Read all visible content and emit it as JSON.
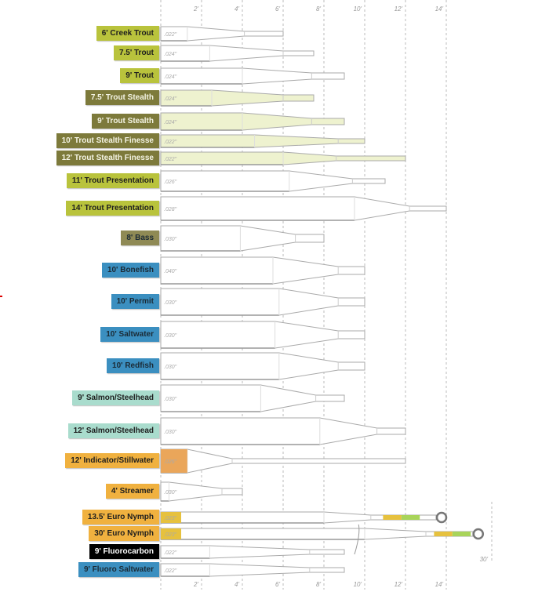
{
  "axis": {
    "unit": "ft",
    "ticks": [
      "2'",
      "4'",
      "6'",
      "8'",
      "10'",
      "12'",
      "14'"
    ],
    "top_last_tick": "14'",
    "extra_tick": "30'"
  },
  "colors": {
    "trout": "#b9c33c",
    "stealth": "#7d7a3b",
    "bass": "#8f8a55",
    "salt": "#3b8fc0",
    "salmon": "#a9dccd",
    "specialty": "#f0b13f",
    "fluoro": "#000000",
    "stealth_fill": "#eef2cf",
    "indicator_fill": "#eaa65a",
    "euro_yellow": "#e6c13e",
    "euro_green": "#a8d45a"
  },
  "leaders": [
    {
      "label": "6' Creek Trout",
      "length_ft": 6,
      "diameter": ".022\"",
      "color": "#b9c33c"
    },
    {
      "label": "7.5' Trout",
      "length_ft": 7.5,
      "diameter": ".024\"",
      "color": "#b9c33c"
    },
    {
      "label": "9' Trout",
      "length_ft": 9,
      "diameter": ".024\"",
      "color": "#b9c33c"
    },
    {
      "label": "7.5' Trout Stealth",
      "length_ft": 7.5,
      "diameter": ".024\"",
      "color": "#7d7a3b"
    },
    {
      "label": "9' Trout Stealth",
      "length_ft": 9,
      "diameter": ".024\"",
      "color": "#7d7a3b"
    },
    {
      "label": "10' Trout Stealth Finesse",
      "length_ft": 10,
      "diameter": ".022\"",
      "color": "#7d7a3b"
    },
    {
      "label": "12' Trout Stealth Finesse",
      "length_ft": 12,
      "diameter": ".022\"",
      "color": "#7d7a3b"
    },
    {
      "label": "11' Trout Presentation",
      "length_ft": 11,
      "diameter": ".026\"",
      "color": "#b9c33c"
    },
    {
      "label": "14' Trout Presentation",
      "length_ft": 14,
      "diameter": ".028\"",
      "color": "#b9c33c"
    },
    {
      "label": "8' Bass",
      "length_ft": 8,
      "diameter": ".030\"",
      "color": "#8f8a55"
    },
    {
      "label": "10' Bonefish",
      "length_ft": 10,
      "diameter": ".040\"",
      "color": "#3b8fc0"
    },
    {
      "label": "10' Permit",
      "length_ft": 10,
      "diameter": ".030\"",
      "color": "#3b8fc0"
    },
    {
      "label": "10' Saltwater",
      "length_ft": 10,
      "diameter": ".030\"",
      "color": "#3b8fc0"
    },
    {
      "label": "10' Redfish",
      "length_ft": 10,
      "diameter": ".030\"",
      "color": "#3b8fc0"
    },
    {
      "label": "9' Salmon/Steelhead",
      "length_ft": 9,
      "diameter": ".030\"",
      "color": "#a9dccd"
    },
    {
      "label": "12' Salmon/Steelhead",
      "length_ft": 12,
      "diameter": ".030\"",
      "color": "#a9dccd"
    },
    {
      "label": "12' Indicator/Stillwater",
      "length_ft": 12,
      "diameter": ".026\"",
      "color": "#f0b13f"
    },
    {
      "label": "4' Streamer",
      "length_ft": 4,
      "diameter": ".030\"",
      "color": "#f0b13f"
    },
    {
      "label": "13.5' Euro Nymph",
      "length_ft": 13.5,
      "diameter": ".023\"",
      "color": "#f0b13f"
    },
    {
      "label": "30' Euro Nymph",
      "length_ft": 30,
      "diameter": ".023\"",
      "color": "#f0b13f"
    },
    {
      "label": "9' Fluorocarbon",
      "length_ft": 9,
      "diameter": ".022\"",
      "color": "#000000"
    },
    {
      "label": "9' Fluoro Saltwater",
      "length_ft": 9,
      "diameter": ".022\"",
      "color": "#3b8fc0"
    }
  ]
}
